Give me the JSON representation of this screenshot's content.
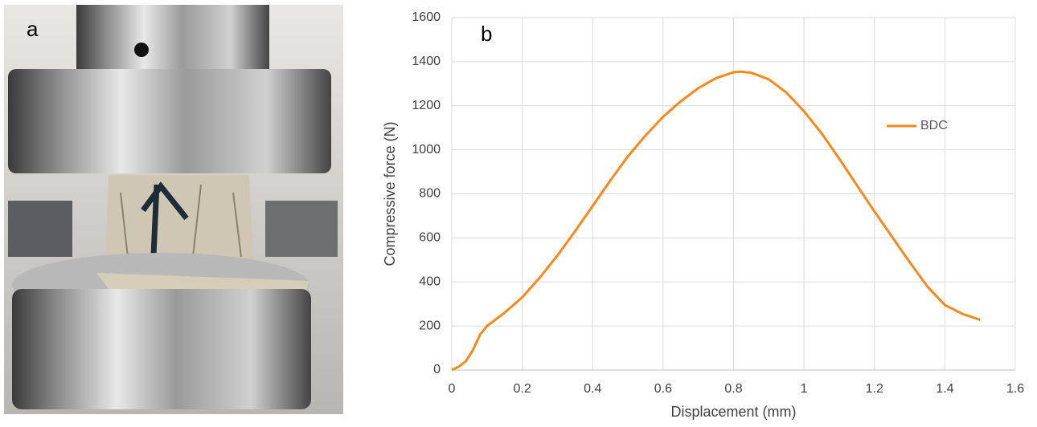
{
  "photo": {
    "label": "a"
  },
  "chart_data": {
    "type": "line",
    "panel_label": "b",
    "x_label": "Displacement (mm)",
    "y_label": "Compressive force (N)",
    "x": [
      0,
      0.02,
      0.04,
      0.06,
      0.08,
      0.1,
      0.15,
      0.2,
      0.25,
      0.3,
      0.35,
      0.4,
      0.45,
      0.5,
      0.55,
      0.6,
      0.65,
      0.7,
      0.75,
      0.8,
      0.82,
      0.85,
      0.9,
      0.95,
      1.0,
      1.05,
      1.1,
      1.15,
      1.2,
      1.25,
      1.3,
      1.35,
      1.4,
      1.45,
      1.5
    ],
    "series": [
      {
        "name": "BDC",
        "color": "#f5891f",
        "values": [
          0,
          15,
          40,
          90,
          160,
          200,
          260,
          330,
          420,
          520,
          630,
          745,
          860,
          970,
          1065,
          1150,
          1220,
          1280,
          1325,
          1352,
          1355,
          1350,
          1320,
          1260,
          1175,
          1075,
          960,
          840,
          720,
          605,
          490,
          380,
          295,
          255,
          228
        ]
      }
    ],
    "xlim": [
      0,
      1.6
    ],
    "xticks": [
      0,
      0.2,
      0.4,
      0.6,
      0.8,
      1,
      1.2,
      1.4,
      1.6
    ],
    "ylim": [
      0,
      1600
    ],
    "yticks": [
      0,
      200,
      400,
      600,
      800,
      1000,
      1200,
      1400,
      1600
    ],
    "grid": true,
    "legend": "right"
  }
}
